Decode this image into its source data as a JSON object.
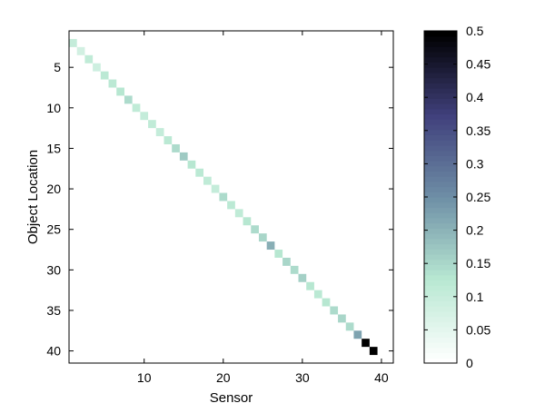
{
  "chart_data": {
    "type": "heatmap",
    "xlabel": "Sensor",
    "ylabel": "Object Location",
    "xlim": [
      0.5,
      41.5
    ],
    "ylim": [
      0.5,
      41.5
    ],
    "y_reversed": true,
    "x_ticks": [
      10,
      20,
      30,
      40
    ],
    "y_ticks": [
      5,
      10,
      15,
      20,
      25,
      30,
      35,
      40
    ],
    "colorbar": {
      "range": [
        0,
        0.5
      ],
      "ticks": [
        "0",
        "0.05",
        "0.1",
        "0.15",
        "0.2",
        "0.25",
        "0.3",
        "0.35",
        "0.4",
        "0.45",
        "0.5"
      ],
      "colormap": "bone-reversed",
      "colors": [
        "#ffffff",
        "#b8e8d2",
        "#6e8fa6",
        "#40407c",
        "#000000"
      ]
    },
    "cells": [
      {
        "x": 1,
        "y": 2,
        "value": 0.1
      },
      {
        "x": 2,
        "y": 3,
        "value": 0.08
      },
      {
        "x": 3,
        "y": 4,
        "value": 0.11
      },
      {
        "x": 4,
        "y": 5,
        "value": 0.09
      },
      {
        "x": 5,
        "y": 6,
        "value": 0.12
      },
      {
        "x": 6,
        "y": 7,
        "value": 0.12
      },
      {
        "x": 7,
        "y": 8,
        "value": 0.13
      },
      {
        "x": 8,
        "y": 9,
        "value": 0.14
      },
      {
        "x": 9,
        "y": 10,
        "value": 0.11
      },
      {
        "x": 10,
        "y": 11,
        "value": 0.1
      },
      {
        "x": 11,
        "y": 12,
        "value": 0.11
      },
      {
        "x": 12,
        "y": 13,
        "value": 0.1
      },
      {
        "x": 13,
        "y": 14,
        "value": 0.12
      },
      {
        "x": 14,
        "y": 15,
        "value": 0.14
      },
      {
        "x": 15,
        "y": 16,
        "value": 0.17
      },
      {
        "x": 16,
        "y": 17,
        "value": 0.13
      },
      {
        "x": 17,
        "y": 18,
        "value": 0.12
      },
      {
        "x": 18,
        "y": 19,
        "value": 0.11
      },
      {
        "x": 19,
        "y": 20,
        "value": 0.1
      },
      {
        "x": 20,
        "y": 21,
        "value": 0.14
      },
      {
        "x": 21,
        "y": 22,
        "value": 0.12
      },
      {
        "x": 22,
        "y": 23,
        "value": 0.11
      },
      {
        "x": 23,
        "y": 24,
        "value": 0.13
      },
      {
        "x": 24,
        "y": 25,
        "value": 0.14
      },
      {
        "x": 25,
        "y": 26,
        "value": 0.15
      },
      {
        "x": 26,
        "y": 27,
        "value": 0.21
      },
      {
        "x": 27,
        "y": 28,
        "value": 0.13
      },
      {
        "x": 28,
        "y": 29,
        "value": 0.15
      },
      {
        "x": 29,
        "y": 30,
        "value": 0.14
      },
      {
        "x": 30,
        "y": 31,
        "value": 0.16
      },
      {
        "x": 31,
        "y": 32,
        "value": 0.13
      },
      {
        "x": 32,
        "y": 33,
        "value": 0.12
      },
      {
        "x": 33,
        "y": 34,
        "value": 0.13
      },
      {
        "x": 34,
        "y": 35,
        "value": 0.14
      },
      {
        "x": 35,
        "y": 36,
        "value": 0.15
      },
      {
        "x": 36,
        "y": 37,
        "value": 0.14
      },
      {
        "x": 37,
        "y": 38,
        "value": 0.22
      },
      {
        "x": 38,
        "y": 39,
        "value": 0.5
      },
      {
        "x": 39,
        "y": 40,
        "value": 0.5
      }
    ]
  }
}
